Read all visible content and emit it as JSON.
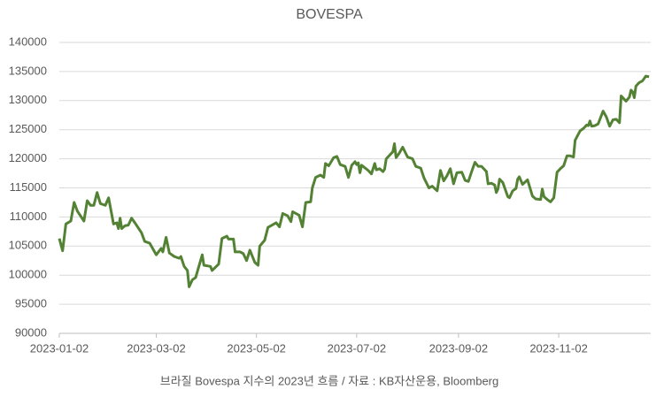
{
  "chart_data": {
    "type": "line",
    "title": "BOVESPA",
    "caption": "브라질 Bovespa 지수의 2023년 흐름 / 자료 : KB자산운용, Bloomberg",
    "grid": true,
    "xlim": [
      "2023-01-02",
      "2023-12-28"
    ],
    "xticks": [
      "2023-01-02",
      "2023-03-02",
      "2023-05-02",
      "2023-07-02",
      "2023-09-02",
      "2023-11-02"
    ],
    "ylim": [
      90000,
      140000
    ],
    "yticks": [
      90000,
      95000,
      100000,
      105000,
      110000,
      115000,
      120000,
      125000,
      130000,
      135000,
      140000
    ],
    "x": [
      "2023-01-02",
      "2023-01-04",
      "2023-01-06",
      "2023-01-09",
      "2023-01-11",
      "2023-01-13",
      "2023-01-17",
      "2023-01-19",
      "2023-01-21",
      "2023-01-23",
      "2023-01-25",
      "2023-01-27",
      "2023-01-30",
      "2023-02-01",
      "2023-02-04",
      "2023-02-06",
      "2023-02-07",
      "2023-02-08",
      "2023-02-09",
      "2023-02-11",
      "2023-02-13",
      "2023-02-15",
      "2023-02-17",
      "2023-02-21",
      "2023-02-23",
      "2023-02-26",
      "2023-03-02",
      "2023-03-05",
      "2023-03-06",
      "2023-03-08",
      "2023-03-10",
      "2023-03-13",
      "2023-03-16",
      "2023-03-17",
      "2023-03-19",
      "2023-03-21",
      "2023-03-22",
      "2023-03-24",
      "2023-03-26",
      "2023-03-30",
      "2023-03-31",
      "2023-04-04",
      "2023-04-05",
      "2023-04-09",
      "2023-04-11",
      "2023-04-14",
      "2023-04-15",
      "2023-04-18",
      "2023-04-19",
      "2023-04-22",
      "2023-04-24",
      "2023-04-26",
      "2023-04-28",
      "2023-05-01",
      "2023-05-03",
      "2023-05-04",
      "2023-05-07",
      "2023-05-09",
      "2023-05-14",
      "2023-05-16",
      "2023-05-18",
      "2023-05-21",
      "2023-05-23",
      "2023-05-24",
      "2023-05-28",
      "2023-05-30",
      "2023-06-01",
      "2023-06-04",
      "2023-06-05",
      "2023-06-07",
      "2023-06-10",
      "2023-06-12",
      "2023-06-13",
      "2023-06-15",
      "2023-06-18",
      "2023-06-20",
      "2023-06-22",
      "2023-06-25",
      "2023-06-27",
      "2023-06-29",
      "2023-07-01",
      "2023-07-02",
      "2023-07-03",
      "2023-07-04",
      "2023-07-05",
      "2023-07-09",
      "2023-07-11",
      "2023-07-13",
      "2023-07-14",
      "2023-07-16",
      "2023-07-18",
      "2023-07-19",
      "2023-07-20",
      "2023-07-24",
      "2023-07-25",
      "2023-07-26",
      "2023-07-28",
      "2023-07-30",
      "2023-08-02",
      "2023-08-05",
      "2023-08-07",
      "2023-08-10",
      "2023-08-12",
      "2023-08-15",
      "2023-08-17",
      "2023-08-20",
      "2023-08-22",
      "2023-08-24",
      "2023-08-26",
      "2023-08-28",
      "2023-08-30",
      "2023-09-01",
      "2023-09-04",
      "2023-09-06",
      "2023-09-08",
      "2023-09-10",
      "2023-09-12",
      "2023-09-14",
      "2023-09-16",
      "2023-09-19",
      "2023-09-20",
      "2023-09-22",
      "2023-09-24",
      "2023-09-25",
      "2023-09-26",
      "2023-09-27",
      "2023-09-29",
      "2023-10-02",
      "2023-10-03",
      "2023-10-05",
      "2023-10-07",
      "2023-10-08",
      "2023-10-09",
      "2023-10-11",
      "2023-10-14",
      "2023-10-17",
      "2023-10-19",
      "2023-10-22",
      "2023-10-23",
      "2023-10-24",
      "2023-10-26",
      "2023-10-28",
      "2023-10-30",
      "2023-11-01",
      "2023-11-03",
      "2023-11-05",
      "2023-11-07",
      "2023-11-09",
      "2023-11-11",
      "2023-11-12",
      "2023-11-15",
      "2023-11-17",
      "2023-11-19",
      "2023-11-20",
      "2023-11-21",
      "2023-11-22",
      "2023-11-24",
      "2023-11-26",
      "2023-11-29",
      "2023-12-01",
      "2023-12-03",
      "2023-12-05",
      "2023-12-07",
      "2023-12-09",
      "2023-12-10",
      "2023-12-13",
      "2023-12-15",
      "2023-12-16",
      "2023-12-17",
      "2023-12-18",
      "2023-12-19",
      "2023-12-21",
      "2023-12-23",
      "2023-12-25",
      "2023-12-27"
    ],
    "series": [
      {
        "name": "BOVESPA",
        "color": "#548235",
        "values": [
          106300,
          104200,
          108800,
          109300,
          112500,
          111000,
          109300,
          112800,
          112000,
          112000,
          114200,
          112300,
          112000,
          113300,
          108800,
          109000,
          108000,
          109800,
          108000,
          108500,
          108600,
          109800,
          109000,
          107300,
          105800,
          105500,
          103500,
          104600,
          104000,
          106500,
          103800,
          103200,
          102900,
          103200,
          101500,
          100800,
          98000,
          99200,
          99600,
          103500,
          101700,
          101500,
          100800,
          101900,
          106300,
          106700,
          106200,
          106200,
          104000,
          104000,
          103700,
          102500,
          104300,
          102200,
          101700,
          105000,
          106000,
          108200,
          109000,
          108300,
          110600,
          110200,
          109200,
          110900,
          110300,
          108300,
          112500,
          112600,
          115000,
          116800,
          117200,
          116800,
          119200,
          118800,
          120200,
          120400,
          119000,
          118700,
          116800,
          118900,
          119500,
          119000,
          119300,
          117600,
          118900,
          118000,
          117400,
          119200,
          118100,
          118300,
          117800,
          118200,
          120000,
          121200,
          122600,
          120200,
          121000,
          122000,
          120300,
          120000,
          118700,
          118400,
          116700,
          115000,
          115300,
          114500,
          118000,
          116200,
          117100,
          118300,
          115700,
          117600,
          117700,
          116300,
          116100,
          117800,
          119400,
          118700,
          118700,
          117800,
          115700,
          115800,
          115500,
          114200,
          114800,
          116500,
          115900,
          113500,
          113300,
          114500,
          114900,
          116500,
          116900,
          115600,
          116400,
          113600,
          113100,
          113000,
          114800,
          113500,
          113000,
          112600,
          113300,
          117700,
          118300,
          118800,
          120500,
          120500,
          120300,
          123200,
          124800,
          125200,
          125800,
          125700,
          126500,
          125600,
          125700,
          126000,
          128200,
          127200,
          125600,
          126700,
          126800,
          126200,
          130800,
          129900,
          130600,
          131800,
          131500,
          130500,
          132500,
          133100,
          133400,
          134200,
          134100
        ]
      }
    ]
  }
}
